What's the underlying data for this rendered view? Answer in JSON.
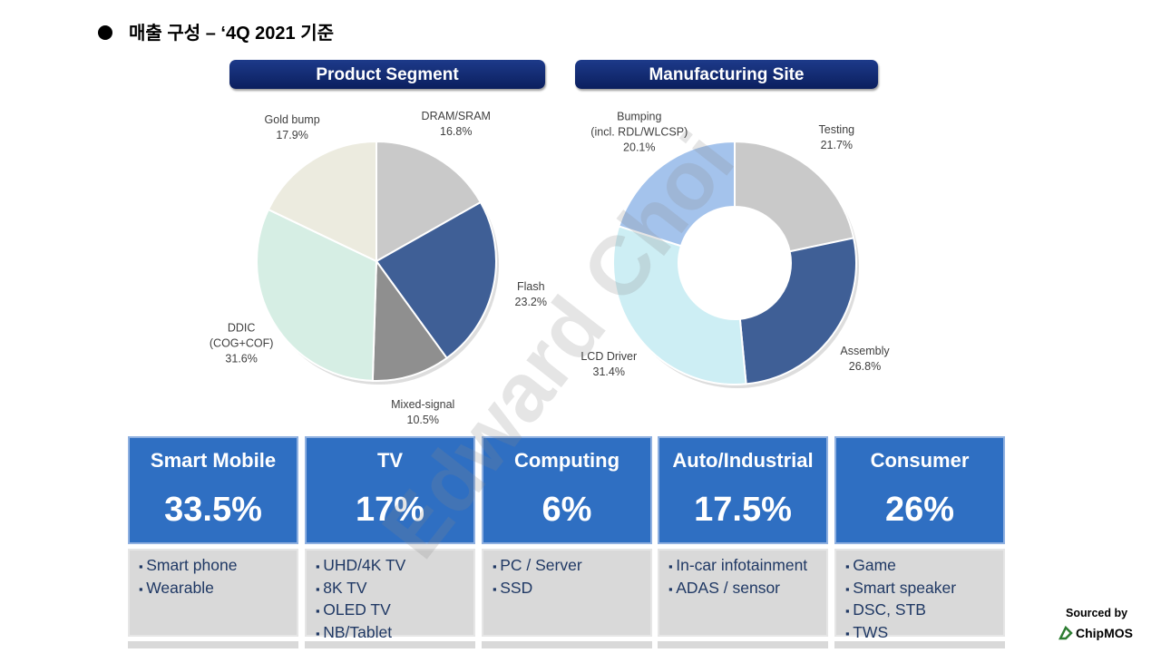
{
  "title": "매출 구성 – ‘4Q 2021 기준",
  "chart_data": [
    {
      "type": "pie",
      "title": "Product Segment",
      "categories": [
        "DRAM/SRAM",
        "Flash",
        "Mixed-signal",
        "DDIC\n(COG+COF)",
        "Gold bump"
      ],
      "values": [
        16.8,
        23.2,
        10.5,
        31.6,
        17.9
      ],
      "value_labels": [
        "16.8%",
        "23.2%",
        "10.5%",
        "31.6%",
        "17.9%"
      ],
      "colors": [
        "#c9c9c9",
        "#3f5f96",
        "#8f8f8f",
        "#d6eee4",
        "#ecebdf"
      ]
    },
    {
      "type": "donut",
      "title": "Manufacturing Site",
      "categories": [
        "Testing",
        "Assembly",
        "LCD Driver",
        "Bumping\n(incl. RDL/WLCSP)"
      ],
      "values": [
        21.7,
        26.8,
        31.4,
        20.1
      ],
      "value_labels": [
        "21.7%",
        "26.8%",
        "31.4%",
        "20.1%"
      ],
      "colors": [
        "#c9c9c9",
        "#3f5f96",
        "#cdeef4",
        "#a4c3ec"
      ]
    }
  ],
  "cards": [
    {
      "name": "Smart Mobile",
      "value": "33.5%",
      "items": [
        "Smart phone",
        "Wearable"
      ]
    },
    {
      "name": "TV",
      "value": "17%",
      "items": [
        "UHD/4K TV",
        "8K TV",
        "OLED TV",
        "NB/Tablet"
      ]
    },
    {
      "name": "Computing",
      "value": "6%",
      "items": [
        "PC / Server",
        "SSD"
      ]
    },
    {
      "name": "Auto/Industrial",
      "value": "17.5%",
      "items": [
        "In-car infotainment",
        "ADAS / sensor"
      ]
    },
    {
      "name": "Consumer",
      "value": "26%",
      "items": [
        "Game",
        "Smart speaker",
        "DSC, STB",
        "TWS"
      ]
    }
  ],
  "watermark": "Edward Choi",
  "source": {
    "label": "Sourced by",
    "company": "ChipMOS"
  }
}
